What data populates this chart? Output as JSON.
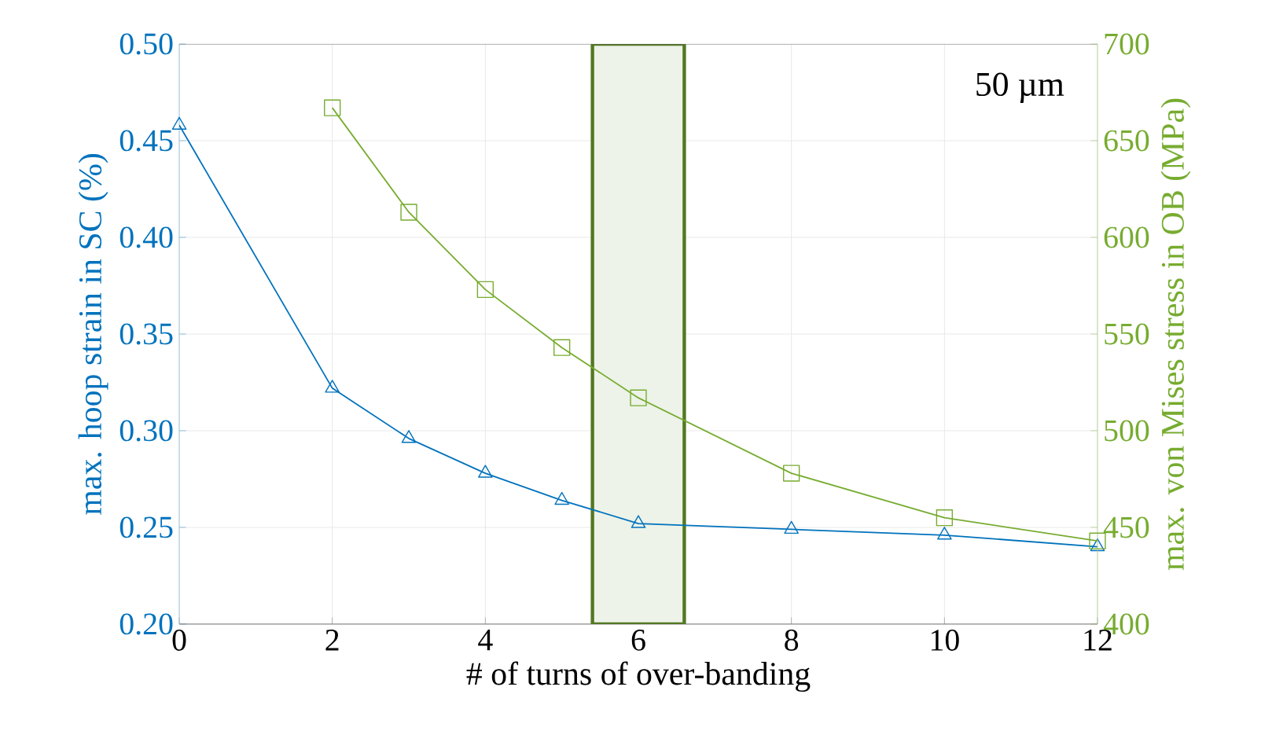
{
  "chart_data": {
    "type": "line",
    "xlabel": "# of turns of over-banding",
    "ylabel": "max. hoop strain in SC (%)",
    "y2label": "max. von Mises stress in OB (MPa)",
    "annotations": [
      "50 µm"
    ],
    "series": [
      {
        "color": "#0072bd",
        "marker": "triangle",
        "x": [
          0,
          2,
          3,
          4,
          5,
          6,
          8,
          10,
          12
        ],
        "values": [
          0.458,
          0.322,
          0.296,
          0.278,
          0.264,
          0.252,
          0.249,
          0.246,
          0.24
        ]
      },
      {
        "color": "#77ac30",
        "marker": "square",
        "axis": "y2",
        "x": [
          2,
          3,
          4,
          5,
          6,
          8,
          10,
          12
        ],
        "values": [
          667,
          613,
          573,
          543,
          517,
          478,
          455,
          443
        ]
      }
    ],
    "xlim": [
      0,
      12
    ],
    "xticks": [
      0,
      2,
      4,
      6,
      8,
      10,
      12
    ],
    "ylim": [
      0.2,
      0.5
    ],
    "yticks": [
      {
        "value": 0.2,
        "label": "0.20"
      },
      0.25,
      {
        "value": 0.3,
        "label": "0.30"
      },
      0.35,
      {
        "value": 0.4,
        "label": "0.40"
      },
      0.45,
      {
        "value": 0.5,
        "label": "0.50"
      }
    ],
    "y2lim": [
      400,
      700
    ],
    "y2ticks": [
      400,
      450,
      500,
      550,
      600,
      650,
      700
    ],
    "grid": true,
    "bands": [
      {
        "axis": "x",
        "from": 5.4,
        "to": 6.6,
        "color": "#edf3e8"
      }
    ]
  }
}
